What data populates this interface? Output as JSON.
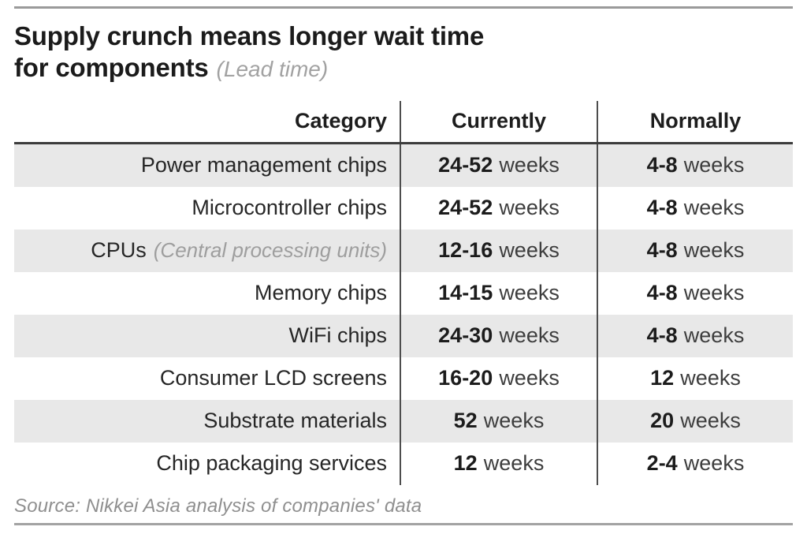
{
  "title": {
    "line1": "Supply crunch means longer wait time",
    "line2": "for components",
    "subtitle": "(Lead time)"
  },
  "table": {
    "headers": {
      "category": "Category",
      "currently": "Currently",
      "normally": "Normally"
    },
    "rows": [
      {
        "category": "Power management chips",
        "note": "",
        "currently_num": "24-52",
        "currently_unit": "weeks",
        "normally_num": "4-8",
        "normally_unit": "weeks"
      },
      {
        "category": "Microcontroller chips",
        "note": "",
        "currently_num": "24-52",
        "currently_unit": "weeks",
        "normally_num": "4-8",
        "normally_unit": "weeks"
      },
      {
        "category": "CPUs",
        "note": "(Central processing units)",
        "currently_num": "12-16",
        "currently_unit": "weeks",
        "normally_num": "4-8",
        "normally_unit": "weeks"
      },
      {
        "category": "Memory chips",
        "note": "",
        "currently_num": "14-15",
        "currently_unit": "weeks",
        "normally_num": "4-8",
        "normally_unit": "weeks"
      },
      {
        "category": "WiFi chips",
        "note": "",
        "currently_num": "24-30",
        "currently_unit": "weeks",
        "normally_num": "4-8",
        "normally_unit": "weeks"
      },
      {
        "category": "Consumer LCD screens",
        "note": "",
        "currently_num": "16-20",
        "currently_unit": "weeks",
        "normally_num": "12",
        "normally_unit": "weeks"
      },
      {
        "category": "Substrate materials",
        "note": "",
        "currently_num": "52",
        "currently_unit": "weeks",
        "normally_num": "20",
        "normally_unit": "weeks"
      },
      {
        "category": "Chip packaging services",
        "note": "",
        "currently_num": "12",
        "currently_unit": "weeks",
        "normally_num": "2-4",
        "normally_unit": "weeks"
      }
    ]
  },
  "source": "Source: Nikkei Asia analysis of companies' data",
  "colors": {
    "row_alt": "#e8e8e8",
    "text": "#1d1d1d",
    "muted_italic": "#9e9e9e",
    "rule_top": "#9a9a9a",
    "header_underline": "#3c3c3c",
    "column_divider": "#4d4d4d",
    "rule_bottom": "#a3a3a3"
  },
  "chart_data": {
    "type": "table",
    "title": "Supply crunch means longer wait time for components",
    "subtitle": "(Lead time)",
    "columns": [
      "Category",
      "Currently",
      "Normally"
    ],
    "rows": [
      [
        "Power management chips",
        "24-52 weeks",
        "4-8 weeks"
      ],
      [
        "Microcontroller chips",
        "24-52 weeks",
        "4-8 weeks"
      ],
      [
        "CPUs (Central processing units)",
        "12-16 weeks",
        "4-8 weeks"
      ],
      [
        "Memory chips",
        "14-15 weeks",
        "4-8 weeks"
      ],
      [
        "WiFi chips",
        "24-30 weeks",
        "4-8 weeks"
      ],
      [
        "Consumer LCD screens",
        "16-20 weeks",
        "12 weeks"
      ],
      [
        "Substrate materials",
        "52 weeks",
        "20 weeks"
      ],
      [
        "Chip packaging services",
        "12 weeks",
        "2-4 weeks"
      ]
    ],
    "layout": {
      "striped_rows": "even rows shaded",
      "value_numbers_bold": true
    },
    "source": "Source: Nikkei Asia analysis of companies' data"
  }
}
